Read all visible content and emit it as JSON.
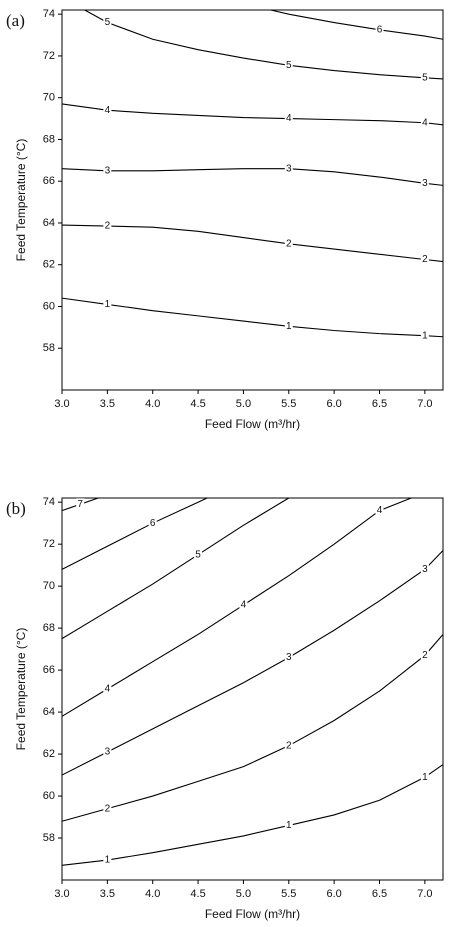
{
  "chart_data": [
    {
      "type": "contour",
      "panel_label": "(a)",
      "x_label": "Feed Flow (m³/hr)",
      "y_label": "Feed Temperature (°C)",
      "color": "#000000",
      "xlim": [
        3.0,
        7.2
      ],
      "ylim": [
        56,
        74.2
      ],
      "xticks": [
        {
          "value": 3,
          "label": "3.0"
        },
        {
          "value": 3.5,
          "label": "3.5"
        },
        {
          "value": 4,
          "label": "4.0"
        },
        {
          "value": 4.5,
          "label": "4.5"
        },
        {
          "value": 5,
          "label": "5.0"
        },
        {
          "value": 5.5,
          "label": "5.5"
        },
        {
          "value": 6,
          "label": "6.0"
        },
        {
          "value": 6.5,
          "label": "6.5"
        },
        {
          "value": 7,
          "label": "7.0"
        }
      ],
      "yticks": [
        58,
        60,
        62,
        64,
        66,
        68,
        70,
        72,
        74
      ],
      "series": [
        {
          "name": "1",
          "x": [
            3.0,
            3.5,
            4.0,
            4.5,
            5.0,
            5.5,
            6.0,
            6.5,
            7.0,
            7.2
          ],
          "values": [
            60.4,
            60.1,
            59.8,
            59.55,
            59.3,
            59.05,
            58.85,
            58.7,
            58.6,
            58.55
          ]
        },
        {
          "name": "2",
          "x": [
            3.0,
            3.5,
            4.0,
            4.5,
            5.0,
            5.5,
            6.0,
            6.5,
            7.0,
            7.2
          ],
          "values": [
            63.9,
            63.85,
            63.8,
            63.6,
            63.3,
            63.0,
            62.75,
            62.5,
            62.25,
            62.15
          ]
        },
        {
          "name": "3",
          "x": [
            3.0,
            3.5,
            4.0,
            4.5,
            5.0,
            5.5,
            6.0,
            6.5,
            7.0,
            7.2
          ],
          "values": [
            66.6,
            66.5,
            66.5,
            66.55,
            66.6,
            66.6,
            66.45,
            66.2,
            65.9,
            65.8
          ]
        },
        {
          "name": "4",
          "x": [
            3.0,
            3.5,
            4.0,
            4.5,
            5.0,
            5.5,
            6.0,
            6.5,
            7.0,
            7.2
          ],
          "values": [
            69.7,
            69.4,
            69.25,
            69.15,
            69.05,
            69.0,
            68.95,
            68.9,
            68.8,
            68.7
          ]
        },
        {
          "name": "5",
          "x": [
            3.25,
            3.5,
            4.0,
            4.5,
            5.0,
            5.5,
            6.0,
            6.5,
            7.0,
            7.2
          ],
          "values": [
            74.2,
            73.6,
            72.8,
            72.3,
            71.9,
            71.55,
            71.3,
            71.1,
            70.95,
            70.9
          ]
        },
        {
          "name": "6",
          "x": [
            5.3,
            5.5,
            6.0,
            6.5,
            7.0,
            7.2
          ],
          "values": [
            74.2,
            74.0,
            73.6,
            73.25,
            72.95,
            72.8
          ]
        }
      ]
    },
    {
      "type": "contour",
      "panel_label": "(b)",
      "x_label": "Feed Flow (m³/hr)",
      "y_label": "Feed Temperature (°C)",
      "color": "#000000",
      "xlim": [
        3.0,
        7.2
      ],
      "ylim": [
        56,
        74.2
      ],
      "xticks": [
        {
          "value": 3,
          "label": "3.0"
        },
        {
          "value": 3.5,
          "label": "3.5"
        },
        {
          "value": 4,
          "label": "4.0"
        },
        {
          "value": 4.5,
          "label": "4.5"
        },
        {
          "value": 5,
          "label": "5.0"
        },
        {
          "value": 5.5,
          "label": "5.5"
        },
        {
          "value": 6,
          "label": "6.0"
        },
        {
          "value": 6.5,
          "label": "6.5"
        },
        {
          "value": 7,
          "label": "7.0"
        }
      ],
      "yticks": [
        58,
        60,
        62,
        64,
        66,
        68,
        70,
        72,
        74
      ],
      "series": [
        {
          "name": "1",
          "x": [
            3.0,
            3.5,
            4.0,
            4.5,
            5.0,
            5.5,
            6.0,
            6.5,
            7.0,
            7.2
          ],
          "values": [
            56.7,
            56.95,
            57.3,
            57.7,
            58.1,
            58.6,
            59.1,
            59.8,
            60.9,
            61.5
          ]
        },
        {
          "name": "2",
          "x": [
            3.0,
            3.5,
            4.0,
            4.5,
            5.0,
            5.5,
            6.0,
            6.5,
            7.0,
            7.2
          ],
          "values": [
            58.8,
            59.4,
            60.0,
            60.7,
            61.4,
            62.4,
            63.6,
            65.0,
            66.7,
            67.7
          ]
        },
        {
          "name": "3",
          "x": [
            3.0,
            3.5,
            4.0,
            4.5,
            5.0,
            5.5,
            6.0,
            6.5,
            7.0,
            7.2
          ],
          "values": [
            61.0,
            62.1,
            63.2,
            64.3,
            65.4,
            66.6,
            67.9,
            69.3,
            70.8,
            71.7
          ]
        },
        {
          "name": "4",
          "x": [
            3.0,
            3.5,
            4.0,
            4.5,
            5.0,
            5.5,
            6.0,
            6.5,
            6.85
          ],
          "values": [
            63.8,
            65.1,
            66.4,
            67.7,
            69.1,
            70.5,
            72.0,
            73.6,
            74.2
          ]
        },
        {
          "name": "5",
          "x": [
            3.0,
            3.5,
            4.0,
            4.5,
            5.0,
            5.5
          ],
          "values": [
            67.5,
            68.8,
            70.1,
            71.5,
            72.9,
            74.2
          ]
        },
        {
          "name": "6",
          "x": [
            3.0,
            3.5,
            4.0,
            4.5,
            4.6
          ],
          "values": [
            70.8,
            71.9,
            73.0,
            74.0,
            74.2
          ]
        },
        {
          "name": "7",
          "x": [
            3.0,
            3.2,
            3.4
          ],
          "values": [
            73.6,
            73.9,
            74.2
          ]
        }
      ]
    }
  ]
}
